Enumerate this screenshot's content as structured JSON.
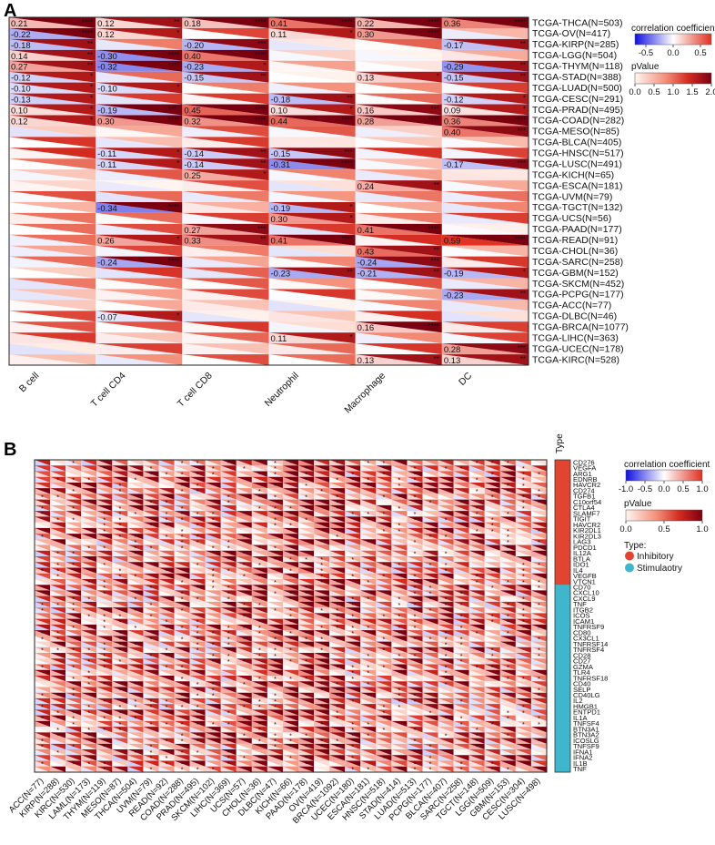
{
  "panels": {
    "a": "A",
    "b": "B"
  },
  "chart_data": [
    {
      "type": "heatmap",
      "panel": "A",
      "cell_glyph": "triangle",
      "columns": [
        "B cell",
        "T cell CD4",
        "T cell CD8",
        "Neutrophil",
        "Macrophage",
        "DC"
      ],
      "rows": [
        "TCGA-THCA(N=503)",
        "TCGA-OV(N=417)",
        "TCGA-KIRP(N=285)",
        "TCGA-LGG(N=504)",
        "TCGA-THYM(N=118)",
        "TCGA-STAD(N=388)",
        "TCGA-LUAD(N=500)",
        "TCGA-CESC(N=291)",
        "TCGA-PRAD(N=495)",
        "TCGA-COAD(N=282)",
        "TCGA-MESO(N=85)",
        "TCGA-BLCA(N=405)",
        "TCGA-HNSC(N=517)",
        "TCGA-LUSC(N=491)",
        "TCGA-KICH(N=65)",
        "TCGA-ESCA(N=181)",
        "TCGA-UVM(N=79)",
        "TCGA-TGCT(N=132)",
        "TCGA-UCS(N=56)",
        "TCGA-PAAD(N=177)",
        "TCGA-READ(N=91)",
        "TCGA-CHOL(N=36)",
        "TCGA-SARC(N=258)",
        "TCGA-GBM(N=152)",
        "TCGA-SKCM(N=452)",
        "TCGA-PCPG(N=177)",
        "TCGA-ACC(N=77)",
        "TCGA-DLBC(N=46)",
        "TCGA-BRCA(N=1077)",
        "TCGA-LIHC(N=363)",
        "TCGA-UCEC(N=178)",
        "TCGA-KIRC(N=528)"
      ],
      "labeled_cells": [
        {
          "row": 0,
          "col": 0,
          "r": "0.21",
          "sig": "****"
        },
        {
          "row": 0,
          "col": 1,
          "r": "0.12",
          "sig": "**"
        },
        {
          "row": 0,
          "col": 2,
          "r": "0.18",
          "sig": "****"
        },
        {
          "row": 0,
          "col": 3,
          "r": "0.41",
          "sig": "****"
        },
        {
          "row": 0,
          "col": 4,
          "r": "0.22",
          "sig": "****"
        },
        {
          "row": 0,
          "col": 5,
          "r": "0.36",
          "sig": "****"
        },
        {
          "row": 1,
          "col": 0,
          "r": "-0.22",
          "sig": "****"
        },
        {
          "row": 1,
          "col": 1,
          "r": "0.12",
          "sig": "*"
        },
        {
          "row": 1,
          "col": 3,
          "r": "0.11",
          "sig": "*"
        },
        {
          "row": 1,
          "col": 4,
          "r": "0.30",
          "sig": "****"
        },
        {
          "row": 2,
          "col": 0,
          "r": "-0.18",
          "sig": "**"
        },
        {
          "row": 2,
          "col": 2,
          "r": "-0.20",
          "sig": "***"
        },
        {
          "row": 2,
          "col": 5,
          "r": "-0.17",
          "sig": "**"
        },
        {
          "row": 3,
          "col": 0,
          "r": "0.14",
          "sig": "**"
        },
        {
          "row": 3,
          "col": 1,
          "r": "-0.30",
          "sig": "****"
        },
        {
          "row": 3,
          "col": 2,
          "r": "0.40",
          "sig": "****"
        },
        {
          "row": 4,
          "col": 0,
          "r": "0.27",
          "sig": "**"
        },
        {
          "row": 4,
          "col": 1,
          "r": "-0.32",
          "sig": "****"
        },
        {
          "row": 4,
          "col": 2,
          "r": "-0.23",
          "sig": "*"
        },
        {
          "row": 4,
          "col": 5,
          "r": "-0.29",
          "sig": "**"
        },
        {
          "row": 5,
          "col": 0,
          "r": "-0.12",
          "sig": "*"
        },
        {
          "row": 5,
          "col": 2,
          "r": "-0.15",
          "sig": "**"
        },
        {
          "row": 5,
          "col": 4,
          "r": "0.13",
          "sig": "*"
        },
        {
          "row": 5,
          "col": 5,
          "r": "-0.15",
          "sig": "**"
        },
        {
          "row": 6,
          "col": 0,
          "r": "-0.10",
          "sig": "*"
        },
        {
          "row": 6,
          "col": 1,
          "r": "-0.10",
          "sig": "*"
        },
        {
          "row": 7,
          "col": 0,
          "r": "-0.13",
          "sig": "*"
        },
        {
          "row": 7,
          "col": 3,
          "r": "-0.18",
          "sig": "**"
        },
        {
          "row": 7,
          "col": 5,
          "r": "-0.12",
          "sig": "*"
        },
        {
          "row": 8,
          "col": 0,
          "r": "0.10",
          "sig": "*"
        },
        {
          "row": 8,
          "col": 1,
          "r": "-0.19",
          "sig": "****"
        },
        {
          "row": 8,
          "col": 2,
          "r": "0.45",
          "sig": "****"
        },
        {
          "row": 8,
          "col": 3,
          "r": "0.10",
          "sig": "*"
        },
        {
          "row": 8,
          "col": 4,
          "r": "0.16",
          "sig": "***"
        },
        {
          "row": 8,
          "col": 5,
          "r": "0.09",
          "sig": "*"
        },
        {
          "row": 9,
          "col": 0,
          "r": "0.12",
          "sig": "*"
        },
        {
          "row": 9,
          "col": 1,
          "r": "0.30",
          "sig": "****"
        },
        {
          "row": 9,
          "col": 2,
          "r": "0.32",
          "sig": "****"
        },
        {
          "row": 9,
          "col": 3,
          "r": "0.44",
          "sig": "****"
        },
        {
          "row": 9,
          "col": 4,
          "r": "0.28",
          "sig": "****"
        },
        {
          "row": 9,
          "col": 5,
          "r": "0.36",
          "sig": "****"
        },
        {
          "row": 10,
          "col": 5,
          "r": "0.40",
          "sig": "***"
        },
        {
          "row": 12,
          "col": 1,
          "r": "-0.11",
          "sig": "*"
        },
        {
          "row": 12,
          "col": 2,
          "r": "-0.14",
          "sig": "**"
        },
        {
          "row": 12,
          "col": 3,
          "r": "-0.15",
          "sig": "***"
        },
        {
          "row": 13,
          "col": 1,
          "r": "-0.11",
          "sig": "*"
        },
        {
          "row": 13,
          "col": 2,
          "r": "-0.14",
          "sig": "**"
        },
        {
          "row": 13,
          "col": 3,
          "r": "-0.31",
          "sig": "****"
        },
        {
          "row": 13,
          "col": 5,
          "r": "-0.17",
          "sig": "***"
        },
        {
          "row": 14,
          "col": 2,
          "r": "0.25",
          "sig": "*"
        },
        {
          "row": 15,
          "col": 4,
          "r": "0.24",
          "sig": "**"
        },
        {
          "row": 17,
          "col": 1,
          "r": "-0.34",
          "sig": "****"
        },
        {
          "row": 17,
          "col": 3,
          "r": "-0.19",
          "sig": "*"
        },
        {
          "row": 18,
          "col": 3,
          "r": "0.30",
          "sig": "*"
        },
        {
          "row": 19,
          "col": 2,
          "r": "0.27",
          "sig": "***"
        },
        {
          "row": 19,
          "col": 4,
          "r": "0.41",
          "sig": "****"
        },
        {
          "row": 20,
          "col": 1,
          "r": "0.26",
          "sig": "*"
        },
        {
          "row": 20,
          "col": 2,
          "r": "0.33",
          "sig": "**"
        },
        {
          "row": 20,
          "col": 3,
          "r": "0.41",
          "sig": "****"
        },
        {
          "row": 20,
          "col": 5,
          "r": "0.59",
          "sig": "****"
        },
        {
          "row": 21,
          "col": 4,
          "r": "0.43",
          "sig": "**"
        },
        {
          "row": 22,
          "col": 1,
          "r": "-0.24",
          "sig": "****"
        },
        {
          "row": 22,
          "col": 4,
          "r": "-0.24",
          "sig": "***"
        },
        {
          "row": 23,
          "col": 3,
          "r": "-0.23",
          "sig": "**"
        },
        {
          "row": 23,
          "col": 4,
          "r": "-0.21",
          "sig": "**"
        },
        {
          "row": 23,
          "col": 5,
          "r": "-0.19",
          "sig": "*"
        },
        {
          "row": 25,
          "col": 5,
          "r": "-0.23",
          "sig": "**"
        },
        {
          "row": 27,
          "col": 1,
          "r": "-0.07",
          "sig": "*"
        },
        {
          "row": 28,
          "col": 4,
          "r": "0.16",
          "sig": "****"
        },
        {
          "row": 29,
          "col": 3,
          "r": "0.11",
          "sig": "*"
        },
        {
          "row": 30,
          "col": 5,
          "r": "0.28",
          "sig": "***"
        },
        {
          "row": 31,
          "col": 4,
          "r": "0.13",
          "sig": "**"
        },
        {
          "row": 31,
          "col": 5,
          "r": "0.13",
          "sig": "**"
        }
      ],
      "legend": {
        "correlation_title": "correlation coefficient",
        "correlation_ticks": [
          "-0.5",
          "0.0",
          "0.5"
        ],
        "pvalue_title": "pValue",
        "pvalue_ticks": [
          "0.0",
          "0.5",
          "1.0",
          "1.5",
          "2.0"
        ]
      },
      "colors": {
        "negative": "#2020e0",
        "neutral": "#ffffff",
        "positive": "#e03020",
        "pvalue_high": "#8b0000"
      }
    },
    {
      "type": "heatmap",
      "panel": "B",
      "cell_glyph": "triangle",
      "type_header": "Type",
      "columns": [
        "ACC(N=77)",
        "KIRP(N=288)",
        "KIRC(N=530)",
        "LAML(N=173)",
        "THYM(N=119)",
        "MESO(N=87)",
        "THCA(N=504)",
        "UVM(N=79)",
        "READ(N=92)",
        "COAD(N=288)",
        "PRAD(N=495)",
        "SKCM(N=102)",
        "LIHC(N=369)",
        "UCS(N=57)",
        "CHOL(N=36)",
        "DLBC(N=47)",
        "KICH(N=66)",
        "PAAD(N=178)",
        "OV(N=419)",
        "BRCA(N=1092)",
        "UCEC(N=180)",
        "ESCA(N=181)",
        "HNSC(N=518)",
        "STAD(N=414)",
        "LUAD(N=513)",
        "PCPG(N=177)",
        "BLCA(N=407)",
        "SARC(N=258)",
        "TGCT(N=148)",
        "LGG(N=509)",
        "GBM(N=153)",
        "CESC(N=304)",
        "LUSC(N=498)"
      ],
      "rows": [
        "CD276",
        "VEGFA",
        "ARG1",
        "EDNRB",
        "HAVCR2",
        "CD274",
        "TGFB1",
        "C10orf54",
        "CTLA4",
        "SLAMF7",
        "TIGIT",
        "HAVCR2",
        "KIR2DL1",
        "KIR2DL3",
        "LAG3",
        "PDCD1",
        "IL12A",
        "BTLA",
        "IDO1",
        "IL4",
        "VEGFB",
        "VTCN1",
        "CD70",
        "CXCL10",
        "CXCL9",
        "TNF",
        "ITGB2",
        "ICOS",
        "ICAM1",
        "TNFRSF9",
        "CD80",
        "CX3CL1",
        "TNFRSF14",
        "TNFRSF4",
        "CD28",
        "CD27",
        "GZMA",
        "TLR4",
        "TNFRSF18",
        "CD40",
        "SELP",
        "CD40LG",
        "IL2",
        "HMGB1",
        "ENTPD1",
        "IL1A",
        "TNFSF4",
        "BTN3A1",
        "BTN3A2",
        "ICOSLG",
        "TNFSF9",
        "IFNA1",
        "IFNA2",
        "IL1B",
        "TNF"
      ],
      "row_types": [
        "Inhibitory",
        "Inhibitory",
        "Inhibitory",
        "Inhibitory",
        "Inhibitory",
        "Inhibitory",
        "Inhibitory",
        "Inhibitory",
        "Inhibitory",
        "Inhibitory",
        "Inhibitory",
        "Inhibitory",
        "Inhibitory",
        "Inhibitory",
        "Inhibitory",
        "Inhibitory",
        "Inhibitory",
        "Inhibitory",
        "Inhibitory",
        "Inhibitory",
        "Inhibitory",
        "Inhibitory",
        "Stimulaotry",
        "Stimulaotry",
        "Stimulaotry",
        "Stimulaotry",
        "Stimulaotry",
        "Stimulaotry",
        "Stimulaotry",
        "Stimulaotry",
        "Stimulaotry",
        "Stimulaotry",
        "Stimulaotry",
        "Stimulaotry",
        "Stimulaotry",
        "Stimulaotry",
        "Stimulaotry",
        "Stimulaotry",
        "Stimulaotry",
        "Stimulaotry",
        "Stimulaotry",
        "Stimulaotry",
        "Stimulaotry",
        "Stimulaotry",
        "Stimulaotry",
        "Stimulaotry",
        "Stimulaotry",
        "Stimulaotry",
        "Stimulaotry",
        "Stimulaotry",
        "Stimulaotry",
        "Stimulaotry",
        "Stimulaotry",
        "Stimulaotry",
        "Stimulaotry"
      ],
      "significance_mark": "*",
      "legend": {
        "correlation_title": "correlation coefficient",
        "correlation_ticks": [
          "-1.0",
          "-0.5",
          "0.0",
          "0.5",
          "1.0"
        ],
        "pvalue_title": "pValue",
        "pvalue_ticks": [
          "0.0",
          "0.5",
          "1.0"
        ],
        "type_title": "Type:",
        "types": [
          {
            "label": "Inhibitory",
            "color": "#e2452f"
          },
          {
            "label": "Stimulaotry",
            "color": "#3fb6cc"
          }
        ]
      },
      "colors": {
        "negative": "#2020e0",
        "neutral": "#ffffff",
        "positive": "#e03020",
        "pvalue_high": "#8b0000"
      }
    }
  ]
}
